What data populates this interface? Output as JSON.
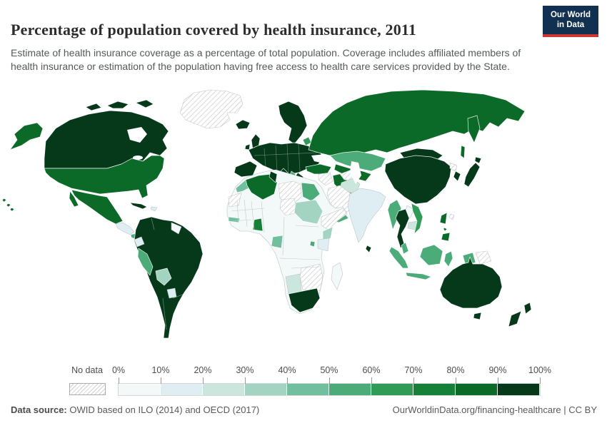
{
  "header": {
    "title": "Percentage of population covered by health insurance, 2011",
    "subtitle": "Estimate of health insurance coverage as a percentage of total population. Coverage includes affiliated members of health insurance or estimation of the population having free access to health care services provided by the State.",
    "logo": {
      "line1": "Our World",
      "line2": "in Data",
      "bg_color": "#12304f",
      "accent_color": "#cd3731"
    }
  },
  "legend": {
    "no_data_label": "No data",
    "tick_labels": [
      "0%",
      "10%",
      "20%",
      "30%",
      "40%",
      "50%",
      "60%",
      "70%",
      "80%",
      "90%",
      "100%"
    ]
  },
  "footer": {
    "source_label": "Data source:",
    "source_text": " OWID based on ILO (2014) and OECD (2017)",
    "credit": "OurWorldinData.org/financing-healthcare | CC BY"
  },
  "chart_data": {
    "type": "heatmap",
    "subtype": "world-choropleth",
    "title": "Percentage of population covered by health insurance",
    "year": 2011,
    "unit": "% of population",
    "legend_position": "bottom",
    "no_data": {
      "label": "No data",
      "pattern": "diagonal-hatch",
      "stripe_color": "#d0d0d0"
    },
    "bins": [
      {
        "label": "0-10%",
        "color": "#f2f9f8"
      },
      {
        "label": "10-20%",
        "color": "#deeef3"
      },
      {
        "label": "20-30%",
        "color": "#cbe6dd"
      },
      {
        "label": "30-40%",
        "color": "#a2d4c1"
      },
      {
        "label": "40-50%",
        "color": "#71bf9f"
      },
      {
        "label": "50-60%",
        "color": "#4bac7a"
      },
      {
        "label": "60-70%",
        "color": "#2f9b57"
      },
      {
        "label": "70-80%",
        "color": "#168039"
      },
      {
        "label": "80-90%",
        "color": "#0c6a28"
      },
      {
        "label": "90-100%",
        "color": "#05391a"
      }
    ],
    "regions": {
      "greenland": "No data",
      "canada": "90-100%",
      "arctic-islands": "90-100%",
      "alaska": "80-90%",
      "united-states": "80-90%",
      "hawaii": "80-90%",
      "mexico": "80-90%",
      "cuba": "90-100%",
      "hispaniola": "10-20%",
      "central-america": "10-20%",
      "panama-costa-rica": "50-60%",
      "south-america": "90-100%",
      "ecuador": "10-20%",
      "peru": "50-60%",
      "bolivia": "30-40%",
      "paraguay": "10-20%",
      "guyanas": "0-10%",
      "iceland": "90-100%",
      "united-kingdom": "90-100%",
      "ireland": "90-100%",
      "scandinavia": "90-100%",
      "europe": "90-100%",
      "iberia": "90-100%",
      "italy": "90-100%",
      "greece": "90-100%",
      "balkans": "50-60%",
      "baltics": "60-70%",
      "russia": "80-90%",
      "kazakhstan": "50-60%",
      "central-asia": "80-90%",
      "china": "90-100%",
      "mongolia": "90-100%",
      "japan": "90-100%",
      "south-korea": "90-100%",
      "north-korea": "No data",
      "taiwan": "No data",
      "india": "10-20%",
      "sri-lanka": "90-100%",
      "pakistan": "20-30%",
      "afghanistan": "No data",
      "turkey": "80-90%",
      "iran": "80-90%",
      "iraq-syria": "No data",
      "saudi-arabia": "No data",
      "yemen": "50-60%",
      "oman": "90-100%",
      "africa-other": "0-10%",
      "western-sahara": "No data",
      "morocco": "40-50%",
      "algeria": "80-90%",
      "tunisia": "90-100%",
      "libya": "No data",
      "chad": "No data",
      "egypt": "50-60%",
      "sudan": "30-40%",
      "ethiopia-somalia": "No data",
      "kenya": "30-40%",
      "tanzania": "10-20%",
      "senegal": "40-50%",
      "ghana": "70-80%",
      "gabon": "40-50%",
      "rwanda": "50-60%",
      "namibia": "20-30%",
      "botswana-zimbabwe-mozambique": "No data",
      "south-africa": "90-100%",
      "madagascar": "0-10%",
      "myanmar": "50-60%",
      "thailand": "90-100%",
      "laos": "0-10%",
      "cambodia": "20-30%",
      "vietnam": "60-70%",
      "malay-peninsula": "50-60%",
      "sumatra": "50-60%",
      "java": "50-60%",
      "borneo": "50-60%",
      "sulawesi": "50-60%",
      "west-papua": "50-60%",
      "papua-new-guinea": "No data",
      "philippines": "80-90%",
      "australia": "90-100%",
      "tasmania": "90-100%",
      "new-zealand": "90-100%"
    }
  }
}
